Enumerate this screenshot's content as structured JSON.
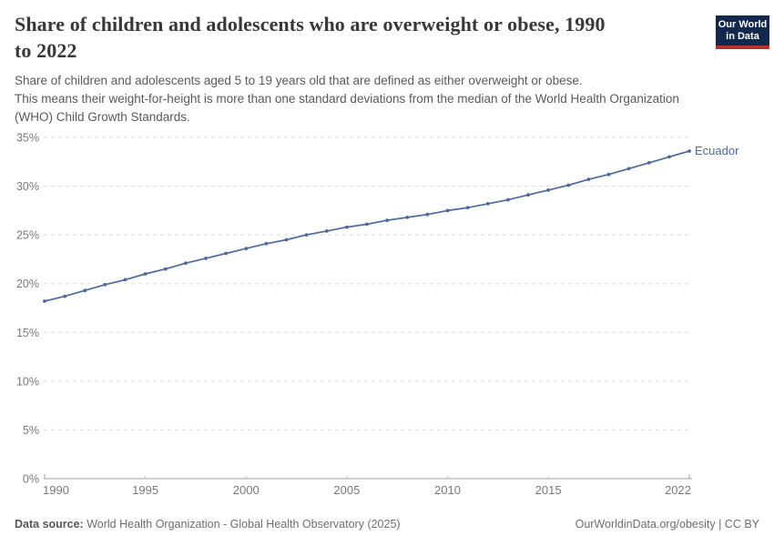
{
  "header": {
    "title_lines": [
      "Share of children and adolescents who are overweight or obese, 1990",
      "to 2022"
    ],
    "subtitle_lines": [
      "Share of children and adolescents aged 5 to 19 years old that are defined as either overweight or obese.",
      "This means their weight-for-height is more than one standard deviations from the median of the World Health Organization",
      "(WHO) Child Growth Standards."
    ]
  },
  "logo": {
    "line1": "Our World",
    "line2": "in Data",
    "bg_color": "#12294d",
    "bar_color": "#b5332e"
  },
  "chart_data": {
    "type": "line",
    "title": "Share of children and adolescents who are overweight or obese, 1990 to 2022",
    "xlabel": "",
    "ylabel": "",
    "xlim": [
      1990,
      2022
    ],
    "ylim": [
      0,
      35
    ],
    "grid": "horizontal-dashed",
    "legend_position": "end-of-line-label",
    "x_tick_labels": [
      1990,
      1995,
      2000,
      2005,
      2010,
      2015,
      2022
    ],
    "y_tick_labels": [
      "0%",
      "5%",
      "10%",
      "15%",
      "20%",
      "25%",
      "30%",
      "35%"
    ],
    "series": [
      {
        "name": "Ecuador",
        "color": "#4C6A9C",
        "x": [
          1990,
          1991,
          1992,
          1993,
          1994,
          1995,
          1996,
          1997,
          1998,
          1999,
          2000,
          2001,
          2002,
          2003,
          2004,
          2005,
          2006,
          2007,
          2008,
          2009,
          2010,
          2011,
          2012,
          2013,
          2014,
          2015,
          2016,
          2017,
          2018,
          2019,
          2020,
          2021,
          2022
        ],
        "values": [
          18.2,
          18.7,
          19.3,
          19.9,
          20.4,
          21.0,
          21.5,
          22.1,
          22.6,
          23.1,
          23.6,
          24.1,
          24.5,
          25.0,
          25.4,
          25.8,
          26.1,
          26.5,
          26.8,
          27.1,
          27.5,
          27.8,
          28.2,
          28.6,
          29.1,
          29.6,
          30.1,
          30.7,
          31.2,
          31.8,
          32.4,
          33.0,
          33.6
        ]
      }
    ],
    "colors": {
      "line": "#4C6A9C",
      "grid": "#dcdcdc",
      "axis": "#a0a0a0",
      "tick_text": "#787878"
    }
  },
  "footer": {
    "datasource_label": "Data source:",
    "datasource_text": " World Health Organization - Global Health Observatory (2025)",
    "link_text": "OurWorldinData.org/obesity | CC BY"
  }
}
